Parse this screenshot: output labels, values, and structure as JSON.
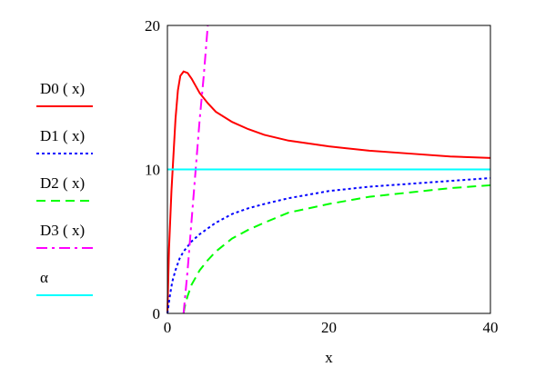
{
  "chart_data": {
    "type": "line",
    "xlabel": "x",
    "ylabel": "",
    "xlim": [
      0,
      40
    ],
    "ylim": [
      0,
      20
    ],
    "x_ticks": [
      "0",
      "20",
      "40"
    ],
    "y_ticks": [
      "0",
      "10",
      "20"
    ],
    "legend_position": "left",
    "series": [
      {
        "name": "D0  ( x)",
        "color": "#ff0000",
        "style": "solid",
        "x": [
          0,
          0.2,
          0.5,
          0.8,
          1.0,
          1.3,
          1.6,
          2.0,
          2.5,
          3.0,
          3.5,
          4.0,
          5.0,
          6.0,
          8.0,
          10,
          12,
          15,
          20,
          25,
          30,
          35,
          40
        ],
        "y": [
          0,
          4.5,
          8.5,
          11.5,
          13.5,
          15.5,
          16.5,
          16.8,
          16.7,
          16.3,
          15.8,
          15.3,
          14.6,
          14.0,
          13.3,
          12.8,
          12.4,
          12.0,
          11.6,
          11.3,
          11.1,
          10.9,
          10.8
        ]
      },
      {
        "name": "D1  ( x)",
        "color": "#0000ff",
        "style": "dotted",
        "x": [
          0,
          0.3,
          0.6,
          1.0,
          1.5,
          2.0,
          3.0,
          4.0,
          5.0,
          6.0,
          8.0,
          10,
          12,
          15,
          20,
          25,
          30,
          35,
          40
        ],
        "y": [
          0,
          1.2,
          2.2,
          3.0,
          3.8,
          4.3,
          5.0,
          5.5,
          5.9,
          6.3,
          6.9,
          7.3,
          7.6,
          8.0,
          8.5,
          8.8,
          9.0,
          9.2,
          9.4
        ]
      },
      {
        "name": "D2  ( x)",
        "color": "#00ff00",
        "style": "dashed",
        "x": [
          2.0,
          2.2,
          2.5,
          3.0,
          3.5,
          4.0,
          5.0,
          6.0,
          8.0,
          10,
          12,
          15,
          20,
          25,
          30,
          35,
          40
        ],
        "y": [
          0,
          0.6,
          1.2,
          2.0,
          2.5,
          3.0,
          3.7,
          4.3,
          5.2,
          5.8,
          6.3,
          7.0,
          7.6,
          8.1,
          8.4,
          8.7,
          8.9
        ]
      },
      {
        "name": "D3  ( x)",
        "color": "#ff00ff",
        "style": "dashdot",
        "x": [
          2.0,
          2.5,
          3.0,
          3.5,
          4.0,
          4.5,
          5.0
        ],
        "y": [
          0,
          3.0,
          6.5,
          10.0,
          13.5,
          16.5,
          20.0
        ]
      },
      {
        "name": "α",
        "color": "#00ffff",
        "style": "solid",
        "x": [
          0,
          40
        ],
        "y": [
          10,
          10
        ]
      }
    ]
  }
}
